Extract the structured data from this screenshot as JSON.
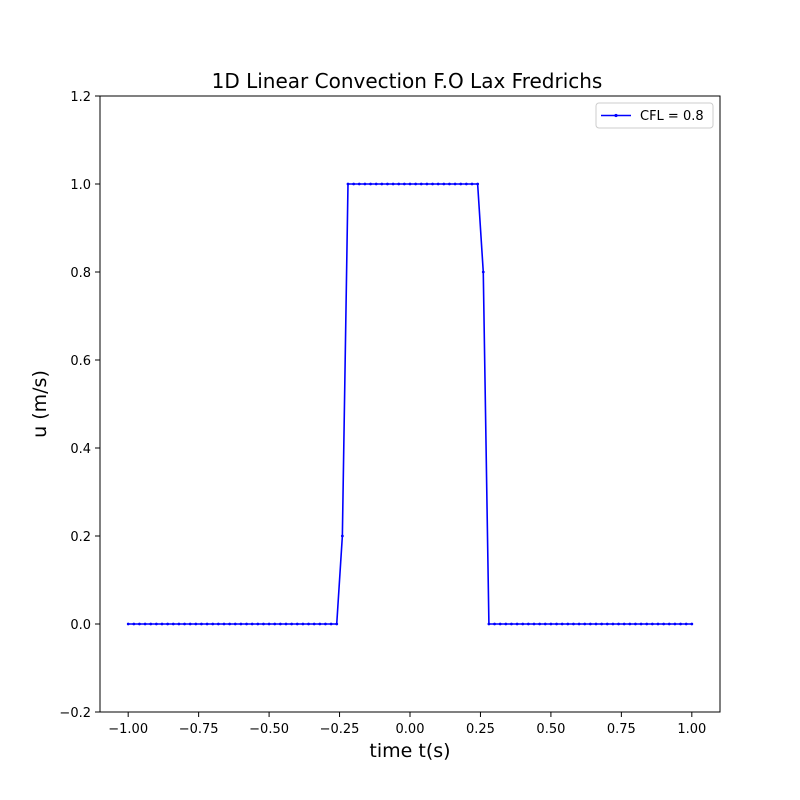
{
  "chart_data": {
    "type": "line",
    "title": "1D Linear Convection F.O Lax Fredrichs",
    "xlabel": "time t(s)",
    "ylabel": "u (m/s)",
    "xlim": [
      -1.1,
      1.1
    ],
    "ylim": [
      -0.2,
      1.2
    ],
    "xticks": [
      -1.0,
      -0.75,
      -0.5,
      -0.25,
      0.0,
      0.25,
      0.5,
      0.75,
      1.0
    ],
    "xtick_labels": [
      "−1.00",
      "−0.75",
      "−0.50",
      "−0.25",
      "0.00",
      "0.25",
      "0.50",
      "0.75",
      "1.00"
    ],
    "yticks": [
      -0.2,
      0.0,
      0.2,
      0.4,
      0.6,
      0.8,
      1.0,
      1.2
    ],
    "ytick_labels": [
      "−0.2",
      "0.0",
      "0.2",
      "0.4",
      "0.6",
      "0.8",
      "1.0",
      "1.2"
    ],
    "grid": false,
    "legend_position": "top-right",
    "series": [
      {
        "name": "CFL = 0.8",
        "color": "#0000ff",
        "marker": "point",
        "x": [
          -1.0,
          -0.98,
          -0.96,
          -0.94,
          -0.92,
          -0.9,
          -0.88,
          -0.86,
          -0.84,
          -0.82,
          -0.8,
          -0.78,
          -0.76,
          -0.74,
          -0.72,
          -0.7,
          -0.68,
          -0.66,
          -0.64,
          -0.62,
          -0.6,
          -0.58,
          -0.56,
          -0.54,
          -0.52,
          -0.5,
          -0.48,
          -0.46,
          -0.44,
          -0.42,
          -0.4,
          -0.38,
          -0.36,
          -0.34,
          -0.32,
          -0.3,
          -0.28,
          -0.26,
          -0.24,
          -0.22,
          -0.2,
          -0.18,
          -0.16,
          -0.14,
          -0.12,
          -0.1,
          -0.08,
          -0.06,
          -0.04,
          -0.02,
          0.0,
          0.02,
          0.04,
          0.06,
          0.08,
          0.1,
          0.12,
          0.14,
          0.16,
          0.18,
          0.2,
          0.22,
          0.24,
          0.26,
          0.28,
          0.3,
          0.32,
          0.34,
          0.36,
          0.38,
          0.4,
          0.42,
          0.44,
          0.46,
          0.48,
          0.5,
          0.52,
          0.54,
          0.56,
          0.58,
          0.6,
          0.62,
          0.64,
          0.66,
          0.68,
          0.7,
          0.72,
          0.74,
          0.76,
          0.78,
          0.8,
          0.82,
          0.84,
          0.86,
          0.88,
          0.9,
          0.92,
          0.94,
          0.96,
          0.98,
          1.0
        ],
        "y": [
          0,
          0,
          0,
          0,
          0,
          0,
          0,
          0,
          0,
          0,
          0,
          0,
          0,
          0,
          0,
          0,
          0,
          0,
          0,
          0,
          0,
          0,
          0,
          0,
          0,
          0,
          0,
          0,
          0,
          0,
          0,
          0,
          0,
          0,
          0,
          0,
          0,
          0,
          0.2,
          1,
          1,
          1,
          1,
          1,
          1,
          1,
          1,
          1,
          1,
          1,
          1,
          1,
          1,
          1,
          1,
          1,
          1,
          1,
          1,
          1,
          1,
          1,
          1,
          0.8,
          0,
          0,
          0,
          0,
          0,
          0,
          0,
          0,
          0,
          0,
          0,
          0,
          0,
          0,
          0,
          0,
          0,
          0,
          0,
          0,
          0,
          0,
          0,
          0,
          0,
          0,
          0,
          0,
          0,
          0,
          0,
          0,
          0,
          0,
          0,
          0,
          0
        ]
      }
    ]
  }
}
